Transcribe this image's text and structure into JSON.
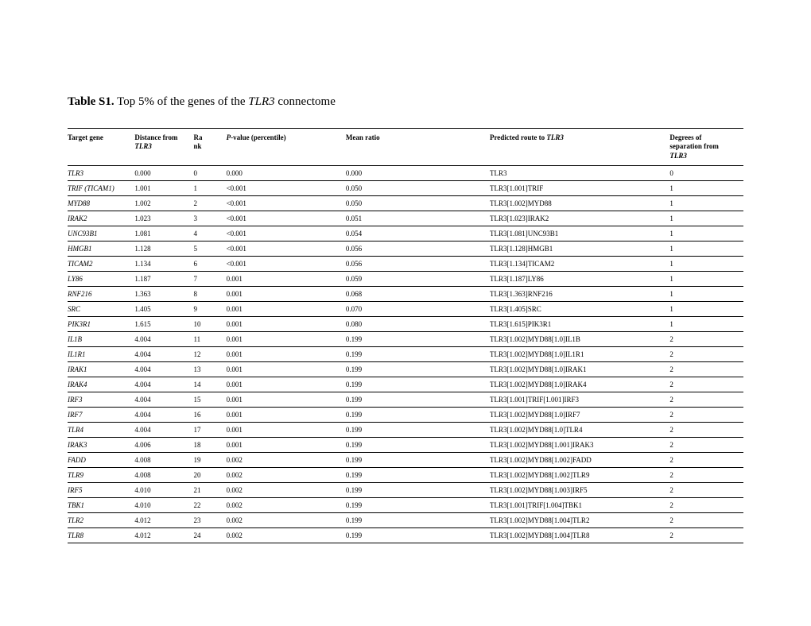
{
  "caption": {
    "lead": "Table S1.",
    "rest_a": " Top 5% of the genes of the ",
    "ital": "TLR3",
    "rest_b": " connectome"
  },
  "headers": {
    "c0": "Target gene",
    "c1_a": "Distance from",
    "c1_b": "TLR3",
    "c2_a": "Ra",
    "c2_b": "nk",
    "c3_a": "P",
    "c3_b": "-value (percentile)",
    "c4": "Mean ratio",
    "c5_a": "Predicted route to ",
    "c5_b": "TLR3",
    "c6_a": "Degrees of",
    "c6_b": "separation from",
    "c6_c": "TLR3"
  },
  "rows": [
    {
      "gene": "TLR3",
      "dist": "0.000",
      "rank": "0",
      "pval": "0.000",
      "mr": "0.000",
      "route": "TLR3",
      "deg": "0"
    },
    {
      "gene": "TRIF (TICAM1)",
      "dist": "1.001",
      "rank": "1",
      "pval": "<0.001",
      "mr": "0.050",
      "route": "TLR3[1.001]TRIF",
      "deg": "1"
    },
    {
      "gene": "MYD88",
      "dist": "1.002",
      "rank": "2",
      "pval": "<0.001",
      "mr": "0.050",
      "route": "TLR3[1.002]MYD88",
      "deg": "1"
    },
    {
      "gene": "IRAK2",
      "dist": "1.023",
      "rank": "3",
      "pval": "<0.001",
      "mr": "0.051",
      "route": "TLR3[1.023]IRAK2",
      "deg": "1"
    },
    {
      "gene": "UNC93B1",
      "dist": "1.081",
      "rank": "4",
      "pval": "<0.001",
      "mr": "0.054",
      "route": "TLR3[1.081]UNC93B1",
      "deg": "1"
    },
    {
      "gene": "HMGB1",
      "dist": "1.128",
      "rank": "5",
      "pval": "<0.001",
      "mr": "0.056",
      "route": "TLR3[1.128]HMGB1",
      "deg": "1"
    },
    {
      "gene": "TICAM2",
      "dist": "1.134",
      "rank": "6",
      "pval": "<0.001",
      "mr": "0.056",
      "route": "TLR3[1.134]TICAM2",
      "deg": "1"
    },
    {
      "gene": "LY86",
      "dist": "1.187",
      "rank": "7",
      "pval": "0.001",
      "mr": "0.059",
      "route": "TLR3[1.187]LY86",
      "deg": "1"
    },
    {
      "gene": "RNF216",
      "dist": "1.363",
      "rank": "8",
      "pval": "0.001",
      "mr": "0.068",
      "route": "TLR3[1.363]RNF216",
      "deg": "1"
    },
    {
      "gene": "SRC",
      "dist": "1.405",
      "rank": "9",
      "pval": "0.001",
      "mr": "0.070",
      "route": "TLR3[1.405]SRC",
      "deg": "1"
    },
    {
      "gene": "PIK3R1",
      "dist": "1.615",
      "rank": "10",
      "pval": "0.001",
      "mr": "0.080",
      "route": "TLR3[1.615]PIK3R1",
      "deg": "1"
    },
    {
      "gene": "IL1B",
      "dist": "4.004",
      "rank": "11",
      "pval": "0.001",
      "mr": "0.199",
      "route": "TLR3[1.002]MYD88[1.0]IL1B",
      "deg": "2"
    },
    {
      "gene": "IL1R1",
      "dist": "4.004",
      "rank": "12",
      "pval": "0.001",
      "mr": "0.199",
      "route": "TLR3[1.002]MYD88[1.0]IL1R1",
      "deg": "2"
    },
    {
      "gene": "IRAK1",
      "dist": "4.004",
      "rank": "13",
      "pval": "0.001",
      "mr": "0.199",
      "route": "TLR3[1.002]MYD88[1.0]IRAK1",
      "deg": "2"
    },
    {
      "gene": "IRAK4",
      "dist": "4.004",
      "rank": "14",
      "pval": "0.001",
      "mr": "0.199",
      "route": "TLR3[1.002]MYD88[1.0]IRAK4",
      "deg": "2"
    },
    {
      "gene": "IRF3",
      "dist": "4.004",
      "rank": "15",
      "pval": "0.001",
      "mr": "0.199",
      "route": "TLR3[1.001]TRIF[1.001]IRF3",
      "deg": "2"
    },
    {
      "gene": "IRF7",
      "dist": "4.004",
      "rank": "16",
      "pval": "0.001",
      "mr": "0.199",
      "route": "TLR3[1.002]MYD88[1.0]IRF7",
      "deg": "2"
    },
    {
      "gene": "TLR4",
      "dist": "4.004",
      "rank": "17",
      "pval": "0.001",
      "mr": "0.199",
      "route": "TLR3[1.002]MYD88[1.0]TLR4",
      "deg": "2"
    },
    {
      "gene": "IRAK3",
      "dist": "4.006",
      "rank": "18",
      "pval": "0.001",
      "mr": "0.199",
      "route": "TLR3[1.002]MYD88[1.001]IRAK3",
      "deg": "2"
    },
    {
      "gene": "FADD",
      "dist": "4.008",
      "rank": "19",
      "pval": "0.002",
      "mr": "0.199",
      "route": "TLR3[1.002]MYD88[1.002]FADD",
      "deg": "2"
    },
    {
      "gene": "TLR9",
      "dist": "4.008",
      "rank": "20",
      "pval": "0.002",
      "mr": "0.199",
      "route": "TLR3[1.002]MYD88[1.002]TLR9",
      "deg": "2"
    },
    {
      "gene": "IRF5",
      "dist": "4.010",
      "rank": "21",
      "pval": "0.002",
      "mr": "0.199",
      "route": "TLR3[1.002]MYD88[1.003]IRF5",
      "deg": "2"
    },
    {
      "gene": "TBK1",
      "dist": "4.010",
      "rank": "22",
      "pval": "0.002",
      "mr": "0.199",
      "route": "TLR3[1.001]TRIF[1.004]TBK1",
      "deg": "2"
    },
    {
      "gene": "TLR2",
      "dist": "4.012",
      "rank": "23",
      "pval": "0.002",
      "mr": "0.199",
      "route": "TLR3[1.002]MYD88[1.004]TLR2",
      "deg": "2"
    },
    {
      "gene": "TLR8",
      "dist": "4.012",
      "rank": "24",
      "pval": "0.002",
      "mr": "0.199",
      "route": "TLR3[1.002]MYD88[1.004]TLR8",
      "deg": "2"
    }
  ]
}
